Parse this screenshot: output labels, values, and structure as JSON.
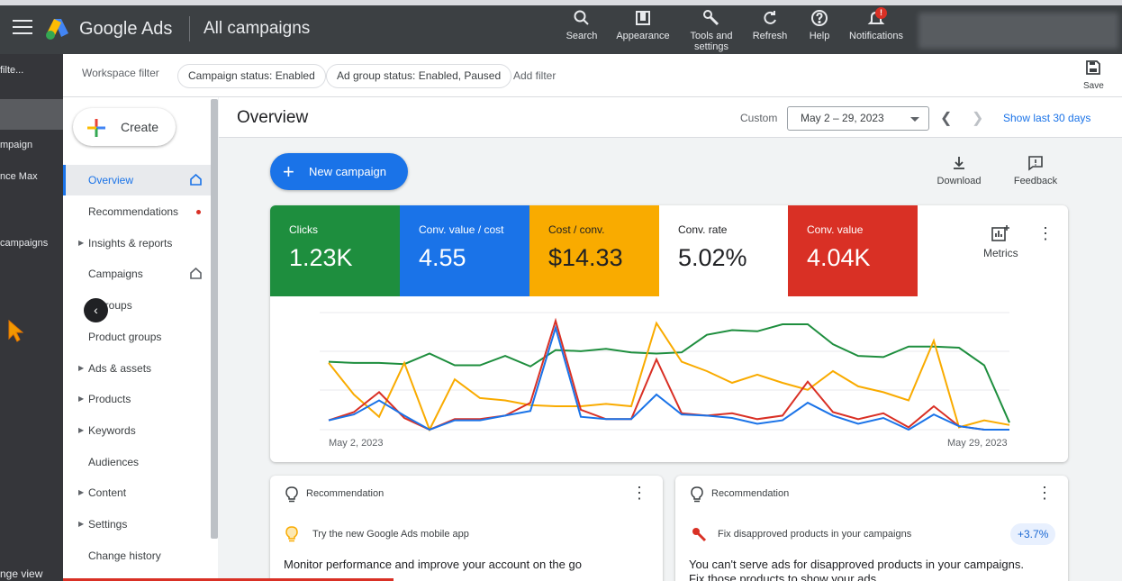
{
  "topbar": {
    "brand": "Google Ads",
    "context": "All campaigns",
    "tools": [
      {
        "label": "Search",
        "icon": "search-icon"
      },
      {
        "label": "Appearance",
        "icon": "appearance-icon"
      },
      {
        "label": "Tools and settings",
        "icon": "wrench-icon"
      },
      {
        "label": "Refresh",
        "icon": "refresh-icon"
      },
      {
        "label": "Help",
        "icon": "help-icon"
      },
      {
        "label": "Notifications",
        "icon": "bell-icon",
        "badge": "!"
      }
    ]
  },
  "farleft": {
    "items": [
      "filte...",
      "mpaign",
      "nce Max",
      "campaigns",
      "nge view"
    ]
  },
  "filterbar": {
    "label": "Workspace filter",
    "chips": [
      "Campaign status: Enabled",
      "Ad group status: Enabled, Paused"
    ],
    "add_filter": "Add filter",
    "save": "Save"
  },
  "nav": {
    "create": "Create",
    "items": [
      {
        "label": "Overview",
        "active": true,
        "icon": "home-icon"
      },
      {
        "label": "Recommendations",
        "dot": true
      },
      {
        "label": "Insights & reports",
        "caret": true
      },
      {
        "label": "Campaigns",
        "icon": "home-icon"
      },
      {
        "label": "groups"
      },
      {
        "label": "Product groups"
      },
      {
        "label": "Ads & assets",
        "caret": true
      },
      {
        "label": "Products",
        "caret": true
      },
      {
        "label": "Keywords",
        "caret": true
      },
      {
        "label": "Audiences"
      },
      {
        "label": "Content",
        "caret": true
      },
      {
        "label": "Settings",
        "caret": true
      },
      {
        "label": "Change history"
      }
    ]
  },
  "main": {
    "title": "Overview",
    "custom_label": "Custom",
    "date_range": "May 2 – 29, 2023",
    "show_last": "Show last 30 days",
    "new_campaign": "New campaign",
    "download": "Download",
    "feedback": "Feedback"
  },
  "metrics": {
    "tiles": [
      {
        "label": "Clicks",
        "value": "1.23K",
        "color": "#1e8e3e"
      },
      {
        "label": "Conv. value / cost",
        "value": "4.55",
        "color": "#1a73e8"
      },
      {
        "label": "Cost / conv.",
        "value": "$14.33",
        "color": "#f9ab00"
      },
      {
        "label": "Conv. rate",
        "value": "5.02%",
        "color": "#ffffff"
      },
      {
        "label": "Conv. value",
        "value": "4.04K",
        "color": "#d93025"
      }
    ],
    "metrics_label": "Metrics"
  },
  "chart_data": {
    "type": "line",
    "x_start": "May 2, 2023",
    "x_end": "May 29, 2023",
    "x": [
      1,
      2,
      3,
      4,
      5,
      6,
      7,
      8,
      9,
      10,
      11,
      12,
      13,
      14,
      15,
      16,
      17,
      18,
      19,
      20,
      21,
      22,
      23,
      24,
      25,
      26,
      27,
      28
    ],
    "series": [
      {
        "color": "#1e8e3e",
        "values": [
          58,
          57,
          57,
          56,
          65,
          55,
          55,
          63,
          54,
          68,
          67,
          69,
          66,
          65,
          66,
          81,
          85,
          84,
          90,
          90,
          73,
          63,
          62,
          71,
          71,
          70,
          55,
          6
        ]
      },
      {
        "color": "#f9ab00",
        "values": [
          57,
          30,
          11,
          57,
          0,
          43,
          27,
          25,
          21,
          20,
          20,
          22,
          20,
          91,
          58,
          50,
          40,
          47,
          40,
          34,
          50,
          37,
          32,
          25,
          76,
          2,
          8,
          4
        ]
      },
      {
        "color": "#d93025",
        "values": [
          8,
          15,
          32,
          10,
          0,
          9,
          9,
          12,
          23,
          93,
          17,
          9,
          9,
          60,
          14,
          12,
          14,
          9,
          12,
          41,
          15,
          9,
          14,
          2,
          20,
          3,
          0,
          0
        ]
      },
      {
        "color": "#1a73e8",
        "values": [
          8,
          13,
          25,
          12,
          0,
          8,
          8,
          12,
          16,
          87,
          11,
          9,
          9,
          30,
          13,
          12,
          10,
          5,
          8,
          23,
          12,
          5,
          10,
          0,
          13,
          3,
          0,
          0
        ]
      }
    ]
  },
  "recommendations": [
    {
      "head": "Recommendation",
      "sub": "Try the new Google Ads mobile app",
      "msg": "Monitor performance and improve your account on the go",
      "msg2": ""
    },
    {
      "head": "Recommendation",
      "sub": "Fix disapproved products in your campaigns",
      "badge": "+3.7%",
      "msg": "You can't serve ads for disapproved products in your campaigns.",
      "msg2": "Fix those products to show your ads"
    }
  ]
}
